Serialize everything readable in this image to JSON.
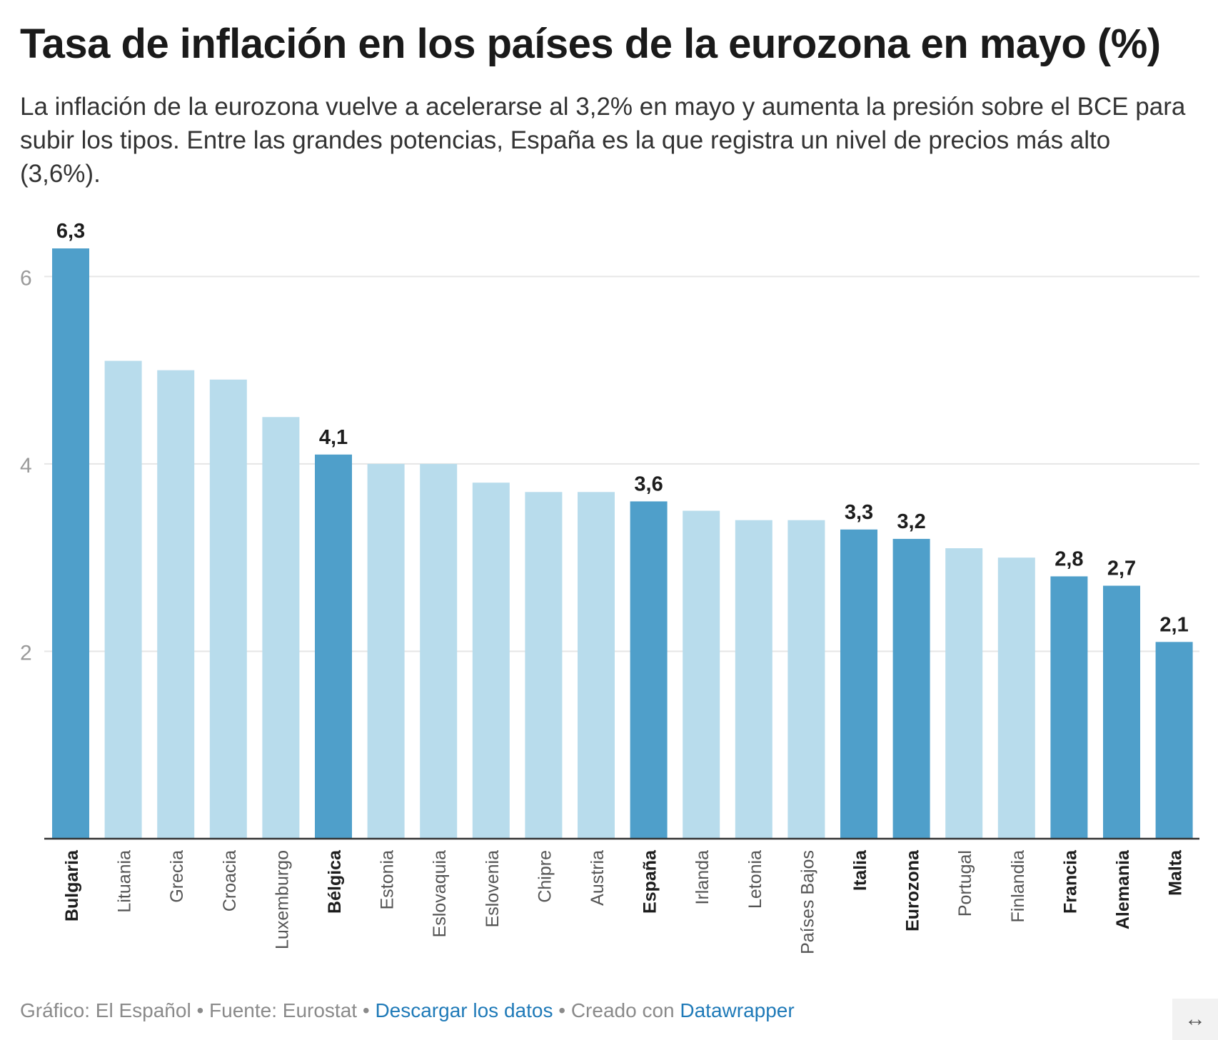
{
  "header": {
    "title": "Tasa de inflación en los países de la eurozona en mayo (%)",
    "subtitle": "La inflación de la eurozona vuelve a acelerarse al 3,2% en mayo y aumenta la presión sobre el BCE para subir los tipos. Entre las grandes potencias, España es la que registra un nivel de precios más alto (3,6%)."
  },
  "chart_data": {
    "type": "bar",
    "title": "Tasa de inflación en los países de la eurozona en mayo (%)",
    "xlabel": "",
    "ylabel": "",
    "ylim": [
      0,
      6.3
    ],
    "yticks": [
      2,
      4,
      6
    ],
    "ytick_labels": [
      "2",
      "4",
      "6"
    ],
    "grid": true,
    "categories": [
      "Bulgaria",
      "Lituania",
      "Grecia",
      "Croacia",
      "Luxemburgo",
      "Bélgica",
      "Estonia",
      "Eslovaquia",
      "Eslovenia",
      "Chipre",
      "Austria",
      "España",
      "Irlanda",
      "Letonia",
      "Países Bajos",
      "Italia",
      "Eurozona",
      "Portugal",
      "Finlandia",
      "Francia",
      "Alemania",
      "Malta"
    ],
    "values": [
      6.3,
      5.1,
      5.0,
      4.9,
      4.5,
      4.1,
      4.0,
      4.0,
      3.8,
      3.7,
      3.7,
      3.6,
      3.5,
      3.4,
      3.4,
      3.3,
      3.2,
      3.1,
      3.0,
      2.8,
      2.7,
      2.1
    ],
    "highlighted": [
      true,
      false,
      false,
      false,
      false,
      true,
      false,
      false,
      false,
      false,
      false,
      true,
      false,
      false,
      false,
      true,
      true,
      false,
      false,
      true,
      true,
      true
    ],
    "value_labels": [
      "6,3",
      "",
      "",
      "",
      "",
      "4,1",
      "",
      "",
      "",
      "",
      "",
      "3,6",
      "",
      "",
      "",
      "3,3",
      "3,2",
      "",
      "",
      "2,8",
      "2,7",
      "2,1"
    ],
    "colors": {
      "highlight": "#4f9fca",
      "normal": "#b8dcec",
      "grid": "#e6e6e6",
      "axis": "#333333",
      "tick_text": "#9a9a9a"
    }
  },
  "footer": {
    "credit": "Gráfico: El Español",
    "sep1": " • ",
    "source": "Fuente: Eurostat",
    "sep2": " • ",
    "download_link": "Descargar los datos",
    "sep3": " • ",
    "created_with": "Creado con ",
    "datawrapper_link": "Datawrapper"
  },
  "controls": {
    "expand_icon": "↔"
  }
}
